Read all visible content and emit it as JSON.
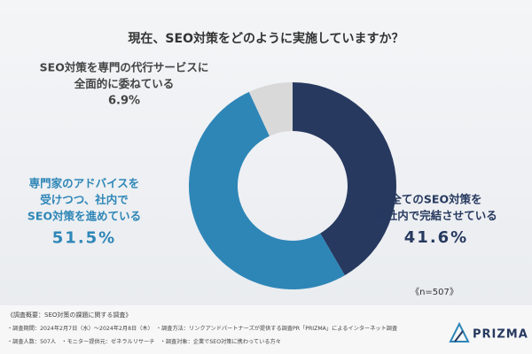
{
  "chart_data": {
    "type": "donut",
    "title": "現在、SEO対策をどのように実施していますか？",
    "categories": [
      [
        "全てのSEO対策を",
        "自社内で完結させている"
      ],
      [
        "専門家のアドバイスを",
        "受けつつ、社内で",
        "SEO対策を進めている"
      ],
      [
        "SEO対策を専門の代行サービスに",
        "全面的に委ねている"
      ]
    ],
    "values": [
      41.6,
      51.5,
      6.9
    ],
    "value_labels": [
      "41.6%",
      "51.5%",
      "6.9%"
    ],
    "colors": [
      "#27395f",
      "#2e86b7",
      "#d9d9d9"
    ],
    "note": "《n=507》"
  },
  "footer": {
    "heading": "《調査概要：SEO対策の課題に関する調査》",
    "lines": [
      "・調査期間：2024年2月7日（水）〜2024年2月8日（木）　・調査方法：リンクアンドパートナーズが提供する調査PR「PRIZMA」によるインターネット調査",
      "・調査人数：507人　・モニター提供元：ゼネラルリサーチ　・調査対象：企業でSEO対策に携わっている方々"
    ]
  },
  "logo": "PRIZMA"
}
